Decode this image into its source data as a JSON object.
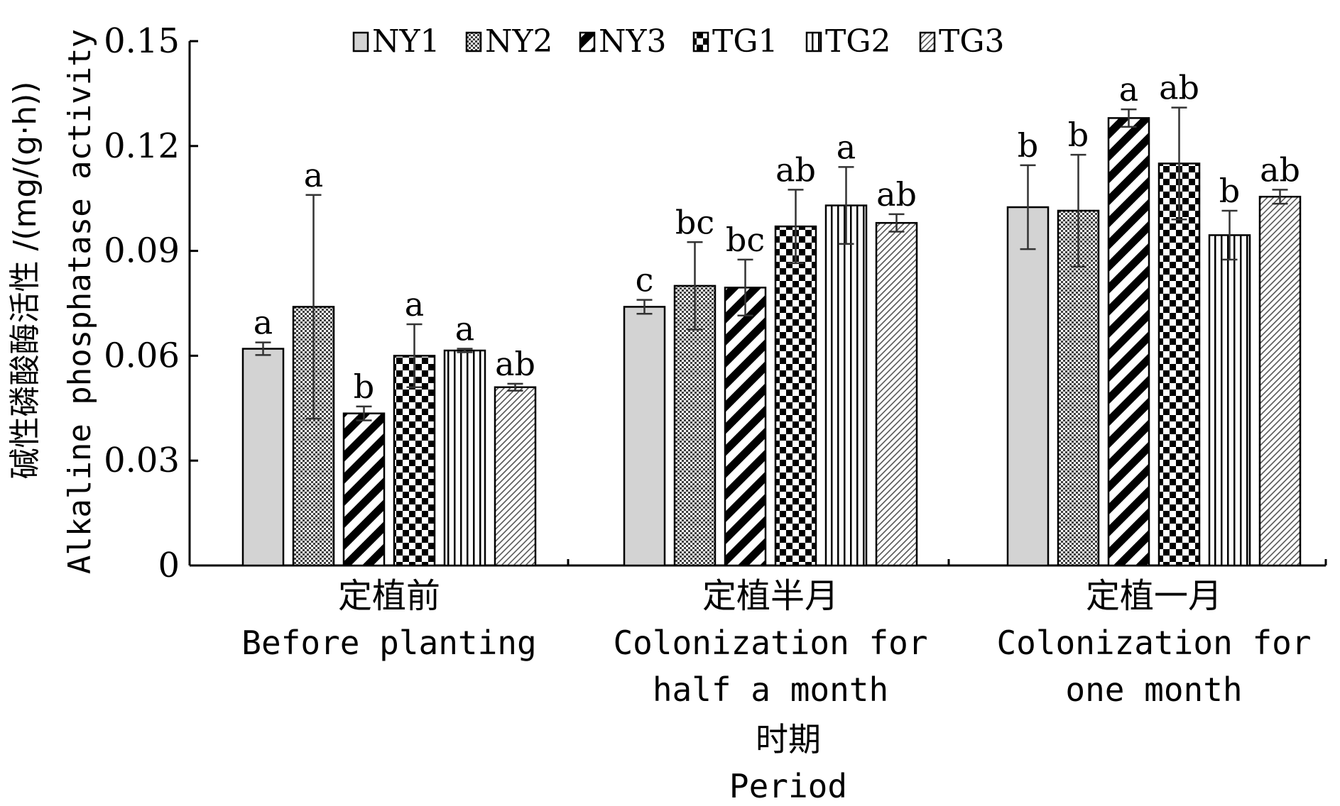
{
  "chart_data": {
    "type": "bar",
    "title": "",
    "ylabel_cn": "碱性磷酸酶活性 /(mg/(g·h))",
    "ylabel_en": "Alkaline phosphatase activity",
    "xlabel_cn": "时期",
    "xlabel_en": "Period",
    "ylim": [
      0,
      0.15
    ],
    "yticks": [
      "0",
      "0.03",
      "0.06",
      "0.09",
      "0.12",
      "0.15"
    ],
    "legend_position": "top",
    "categories": [
      {
        "cn": "定植前",
        "en": [
          "Before planting"
        ]
      },
      {
        "cn": "定植半月",
        "en": [
          "Colonization for",
          "half a month"
        ]
      },
      {
        "cn": "定植一月",
        "en": [
          "Colonization for",
          "one month"
        ]
      }
    ],
    "series": [
      {
        "name": "NY1",
        "pattern": "solid-gray",
        "values": [
          0.062,
          0.074,
          0.1025
        ],
        "errors": [
          0.0018,
          0.002,
          0.012
        ],
        "labels": [
          "a",
          "c",
          "b"
        ]
      },
      {
        "name": "NY2",
        "pattern": "fine-check",
        "values": [
          0.074,
          0.08,
          0.1015
        ],
        "errors": [
          0.032,
          0.0125,
          0.016
        ],
        "labels": [
          "a",
          "bc",
          "b"
        ]
      },
      {
        "name": "NY3",
        "pattern": "thick-diagonal",
        "values": [
          0.0435,
          0.0795,
          0.128
        ],
        "errors": [
          0.002,
          0.008,
          0.0025
        ],
        "labels": [
          "b",
          "bc",
          "a"
        ]
      },
      {
        "name": "TG1",
        "pattern": "large-check",
        "values": [
          0.06,
          0.097,
          0.115
        ],
        "errors": [
          0.009,
          0.0105,
          0.016
        ],
        "labels": [
          "a",
          "ab",
          "ab"
        ]
      },
      {
        "name": "TG2",
        "pattern": "vertical-lines",
        "values": [
          0.0615,
          0.103,
          0.0945
        ],
        "errors": [
          0.0005,
          0.011,
          0.007
        ],
        "labels": [
          "a",
          "a",
          "b"
        ]
      },
      {
        "name": "TG3",
        "pattern": "thin-diagonal",
        "values": [
          0.051,
          0.098,
          0.1055
        ],
        "errors": [
          0.001,
          0.0025,
          0.002
        ],
        "labels": [
          "ab",
          "ab",
          "ab"
        ]
      }
    ]
  }
}
